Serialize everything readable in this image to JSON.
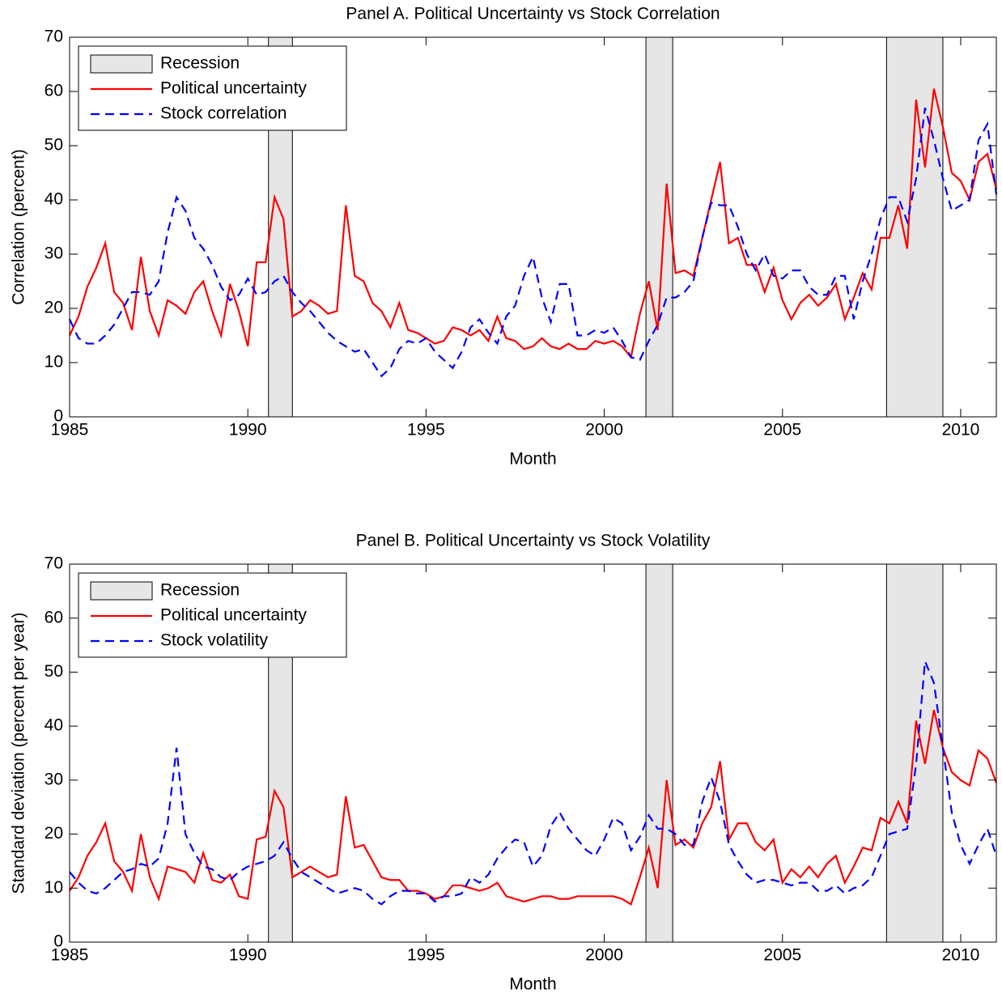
{
  "chart_data": [
    {
      "type": "line",
      "title": "Panel A.  Political Uncertainty vs Stock Correlation",
      "x_label": "Month",
      "y_label": "Correlation (percent)",
      "xlim": [
        1985,
        2011
      ],
      "xticks": [
        1985,
        1990,
        1995,
        2000,
        2005,
        2010
      ],
      "ylim": [
        0,
        70
      ],
      "yticks": [
        0,
        10,
        20,
        30,
        40,
        50,
        60,
        70
      ],
      "legend": "upper left",
      "recessions": {
        "name": "Recession",
        "color": "#e6e6e6",
        "spans": [
          [
            1990.58,
            1991.25
          ],
          [
            2001.17,
            2001.92
          ],
          [
            2007.92,
            2009.5
          ]
        ]
      },
      "x": [
        1985,
        1985.25,
        1985.5,
        1985.75,
        1986,
        1986.25,
        1986.5,
        1986.75,
        1987,
        1987.25,
        1987.5,
        1987.75,
        1988,
        1988.25,
        1988.5,
        1988.75,
        1989,
        1989.25,
        1989.5,
        1989.75,
        1990,
        1990.25,
        1990.5,
        1990.75,
        1991,
        1991.25,
        1991.5,
        1991.75,
        1992,
        1992.25,
        1992.5,
        1992.75,
        1993,
        1993.25,
        1993.5,
        1993.75,
        1994,
        1994.25,
        1994.5,
        1994.75,
        1995,
        1995.25,
        1995.5,
        1995.75,
        1996,
        1996.25,
        1996.5,
        1996.75,
        1997,
        1997.25,
        1997.5,
        1997.75,
        1998,
        1998.25,
        1998.5,
        1998.75,
        1999,
        1999.25,
        1999.5,
        1999.75,
        2000,
        2000.25,
        2000.5,
        2000.75,
        2001,
        2001.25,
        2001.5,
        2001.75,
        2002,
        2002.25,
        2002.5,
        2002.75,
        2003,
        2003.25,
        2003.5,
        2003.75,
        2004,
        2004.25,
        2004.5,
        2004.75,
        2005,
        2005.25,
        2005.5,
        2005.75,
        2006,
        2006.25,
        2006.5,
        2006.75,
        2007,
        2007.25,
        2007.5,
        2007.75,
        2008,
        2008.25,
        2008.5,
        2008.75,
        2009,
        2009.25,
        2009.5,
        2009.75,
        2010,
        2010.25,
        2010.5,
        2010.75,
        2011
      ],
      "series": [
        {
          "name": "Political uncertainty",
          "color": "#ff0000",
          "dash": false,
          "values": [
            15,
            18.5,
            24,
            27.5,
            32,
            23,
            21,
            16,
            29.5,
            19.5,
            15,
            21.5,
            20.5,
            19,
            23,
            25,
            19.5,
            15,
            24.5,
            19.5,
            13,
            28.5,
            28.5,
            40.5,
            36.5,
            18.5,
            19.5,
            21.5,
            20.5,
            19,
            19.5,
            39,
            26,
            25,
            21,
            19.5,
            16.5,
            21,
            16,
            15.5,
            14.5,
            13.5,
            14,
            16.5,
            16,
            15,
            16,
            14,
            18.5,
            14.5,
            14,
            12.5,
            13,
            14.5,
            13,
            12.5,
            13.5,
            12.5,
            12.5,
            14,
            13.5,
            14,
            13,
            11,
            19,
            25,
            16,
            43,
            26.5,
            27,
            26,
            33,
            40,
            47,
            32,
            33,
            28,
            28,
            23,
            27.5,
            21.5,
            18,
            21,
            22.5,
            20.5,
            22,
            24.5,
            18,
            22,
            26.5,
            23.5,
            33,
            33,
            39,
            31,
            58.5,
            46,
            60.5,
            53.5,
            45,
            43.5,
            40,
            47,
            48.5,
            42
          ]
        },
        {
          "name": "Stock correlation",
          "color": "#0000ff",
          "dash": true,
          "values": [
            18,
            14.5,
            13.5,
            13.5,
            15,
            17,
            20,
            23,
            23,
            22.5,
            25,
            34,
            40.5,
            38,
            33,
            31,
            28,
            24,
            21.5,
            22.5,
            25.5,
            22.5,
            23,
            25,
            26,
            23,
            21,
            19.5,
            17.5,
            15.5,
            14,
            13,
            12,
            12.5,
            10,
            7.5,
            9,
            12.5,
            14,
            13.5,
            14.5,
            12,
            10.5,
            9,
            12,
            16.5,
            18,
            15.5,
            13.5,
            18.5,
            20.5,
            26,
            29.5,
            22,
            17.5,
            24.5,
            24.5,
            15,
            15,
            16,
            15.5,
            16.5,
            14,
            11,
            10.5,
            14,
            17,
            22,
            22,
            23,
            25,
            33,
            39.5,
            39,
            39,
            35,
            30,
            27,
            30,
            26,
            25.5,
            27,
            27,
            24,
            22.5,
            22.5,
            26,
            26,
            18,
            25,
            30,
            36.5,
            40.5,
            40.5,
            36,
            44,
            57,
            51,
            44,
            38,
            39,
            40,
            51,
            54,
            41
          ]
        }
      ]
    },
    {
      "type": "line",
      "title": "Panel B.  Political Uncertainty vs Stock Volatility",
      "x_label": "Month",
      "y_label": "Standard deviation (percent per year)",
      "xlim": [
        1985,
        2011
      ],
      "xticks": [
        1985,
        1990,
        1995,
        2000,
        2005,
        2010
      ],
      "ylim": [
        0,
        70
      ],
      "yticks": [
        0,
        10,
        20,
        30,
        40,
        50,
        60,
        70
      ],
      "legend": "upper left",
      "recessions": {
        "name": "Recession",
        "color": "#e6e6e6",
        "spans": [
          [
            1990.58,
            1991.25
          ],
          [
            2001.17,
            2001.92
          ],
          [
            2007.92,
            2009.5
          ]
        ]
      },
      "x": [
        1985,
        1985.25,
        1985.5,
        1985.75,
        1986,
        1986.25,
        1986.5,
        1986.75,
        1987,
        1987.25,
        1987.5,
        1987.75,
        1988,
        1988.25,
        1988.5,
        1988.75,
        1989,
        1989.25,
        1989.5,
        1989.75,
        1990,
        1990.25,
        1990.5,
        1990.75,
        1991,
        1991.25,
        1991.5,
        1991.75,
        1992,
        1992.25,
        1992.5,
        1992.75,
        1993,
        1993.25,
        1993.5,
        1993.75,
        1994,
        1994.25,
        1994.5,
        1994.75,
        1995,
        1995.25,
        1995.5,
        1995.75,
        1996,
        1996.25,
        1996.5,
        1996.75,
        1997,
        1997.25,
        1997.5,
        1997.75,
        1998,
        1998.25,
        1998.5,
        1998.75,
        1999,
        1999.25,
        1999.5,
        1999.75,
        2000,
        2000.25,
        2000.5,
        2000.75,
        2001,
        2001.25,
        2001.5,
        2001.75,
        2002,
        2002.25,
        2002.5,
        2002.75,
        2003,
        2003.25,
        2003.5,
        2003.75,
        2004,
        2004.25,
        2004.5,
        2004.75,
        2005,
        2005.25,
        2005.5,
        2005.75,
        2006,
        2006.25,
        2006.5,
        2006.75,
        2007,
        2007.25,
        2007.5,
        2007.75,
        2008,
        2008.25,
        2008.5,
        2008.75,
        2009,
        2009.25,
        2009.5,
        2009.75,
        2010,
        2010.25,
        2010.5,
        2010.75,
        2011
      ],
      "series": [
        {
          "name": "Political uncertainty",
          "color": "#ff0000",
          "dash": false,
          "values": [
            9.5,
            12,
            16,
            18.5,
            22,
            15,
            13,
            9.5,
            20,
            12,
            8,
            14,
            13.5,
            13,
            11,
            16.5,
            11.5,
            11,
            12.5,
            8.5,
            8,
            19,
            19.5,
            28,
            25,
            12,
            13,
            14,
            13,
            12,
            12.5,
            27,
            17.5,
            18,
            15,
            12,
            11.5,
            11.5,
            9.5,
            9.5,
            9,
            8,
            8.5,
            10.5,
            10.5,
            10,
            9.5,
            10,
            11,
            8.5,
            8,
            7.5,
            8,
            8.5,
            8.5,
            8,
            8,
            8.5,
            8.5,
            8.5,
            8.5,
            8.5,
            8,
            7,
            12,
            17.5,
            10,
            30,
            18,
            19,
            17.5,
            22,
            25,
            33.5,
            19,
            22,
            22,
            18.5,
            17,
            19,
            11,
            13.5,
            12,
            14,
            12,
            14.5,
            16,
            11,
            14,
            17.5,
            17,
            23,
            22,
            26,
            22,
            41,
            33,
            43,
            36,
            31.5,
            30,
            29,
            35.5,
            34,
            29.5
          ]
        },
        {
          "name": "Stock volatility",
          "color": "#0000ff",
          "dash": true,
          "values": [
            13,
            11,
            9.5,
            9,
            10,
            11.5,
            13,
            13.5,
            14.5,
            14,
            15.5,
            22,
            36,
            20,
            16.5,
            14,
            13.5,
            12,
            11.5,
            13,
            14,
            14.5,
            15,
            16,
            18.5,
            15.5,
            13,
            12,
            11,
            10,
            9,
            9.5,
            10,
            9.5,
            8,
            7,
            8.5,
            9.5,
            9.5,
            9,
            9,
            7.5,
            8.5,
            8.5,
            9,
            12,
            11,
            12.5,
            15.5,
            17.5,
            19,
            18.5,
            14,
            16,
            21.5,
            24,
            21,
            19,
            17,
            16,
            19,
            23,
            22,
            17,
            19.5,
            23.5,
            21,
            21,
            20,
            18,
            18,
            26,
            30.5,
            26,
            18,
            15,
            12.5,
            11,
            11.5,
            11.5,
            11,
            10.5,
            11,
            11,
            9.5,
            9.5,
            10.5,
            9,
            10,
            10.5,
            12,
            16,
            20,
            20.5,
            21,
            33,
            52,
            48,
            36,
            24,
            18,
            14.5,
            18,
            21,
            16
          ]
        }
      ]
    }
  ]
}
